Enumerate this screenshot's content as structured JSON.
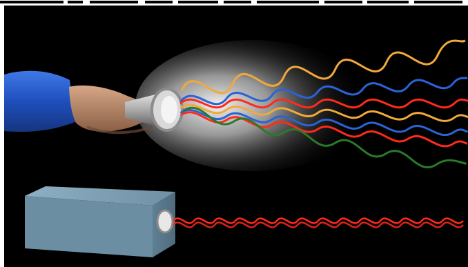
{
  "image": {
    "subject": "flashlight-incoherent-light-vs-laser-coherent-light",
    "palette": {
      "background": "#000000",
      "red": "#ff2a1a",
      "orange": "#f2a93b",
      "blue": "#2a63d8",
      "green": "#2a7a2a",
      "beam_glow": "#ffffff",
      "sleeve": "#1f55c8",
      "skin": "#b98a6b",
      "laser_box": "#6f8fa4"
    },
    "waves_flashlight": [
      "orange",
      "blue",
      "red",
      "green"
    ],
    "waves_laser": [
      "red"
    ]
  }
}
